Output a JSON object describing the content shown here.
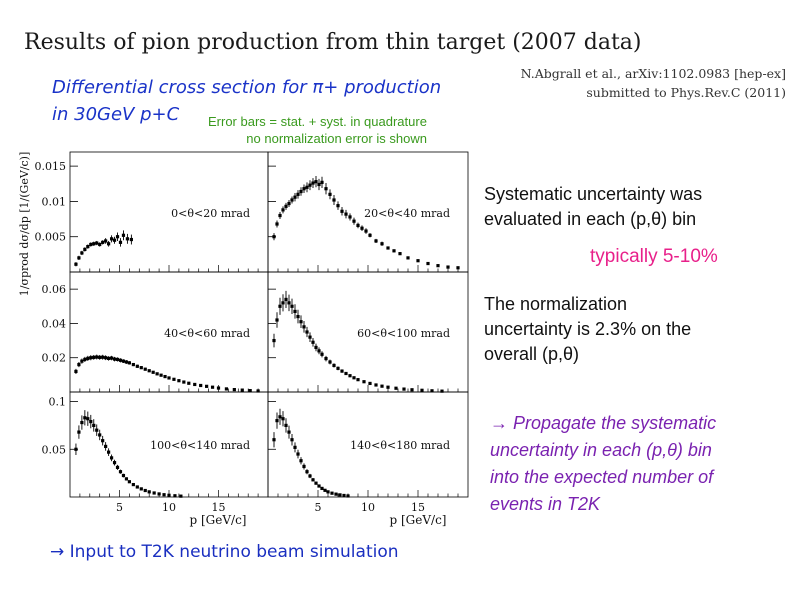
{
  "slide": {
    "title": "Results of pion production from thin target (2007 data)",
    "citation": [
      "N.Abgrall et al., arXiv:1102.0983 [hep-ex]",
      "submitted to Phys.Rev.C (2011)"
    ],
    "subtitle": [
      "Differential cross section for π+ production",
      "in 30GeV p+C"
    ],
    "error_note": [
      "Error bars = stat. + syst. in quadrature",
      "no normalization error is shown"
    ],
    "systematic_note": [
      "Systematic uncertainty was",
      "evaluated in each (p,θ) bin"
    ],
    "typical_note": "typically 5-10%",
    "normalization_note": [
      "The normalization",
      "uncertainty is 2.3% on the",
      "overall (p,θ)"
    ],
    "propagate_note": [
      "→ Propagate the systematic",
      "uncertainty in each (p,θ) bin",
      "into the expected number of",
      "events in T2K"
    ],
    "input_note": "→ Input to T2K neutrino beam simulation",
    "colors": {
      "title": "#1a1a1a",
      "subtitle": "#1a33c8",
      "error_note": "#3a9a1e",
      "typical": "#e8208a",
      "propagate": "#7a22b0",
      "input": "#1a2fc0"
    }
  },
  "chart_data": {
    "type": "scatter",
    "ylabel": "1/σprod dσ/dp [1/(GeV/c)]",
    "xlabel": "p [GeV/c]",
    "x_ticks": [
      "5",
      "10",
      "15"
    ],
    "xlim": [
      0,
      20
    ],
    "rows": [
      {
        "ylim": [
          0,
          0.017
        ],
        "y_ticks": [
          "0.005",
          "0.01",
          "0.015"
        ],
        "y_tick_values": [
          0.005,
          0.01,
          0.015
        ]
      },
      {
        "ylim": [
          0,
          0.07
        ],
        "y_ticks": [
          "0.02",
          "0.04",
          "0.06"
        ],
        "y_tick_values": [
          0.02,
          0.04,
          0.06
        ]
      },
      {
        "ylim": [
          0,
          0.11
        ],
        "y_ticks": [
          "0.05",
          "0.1"
        ],
        "y_tick_values": [
          0.05,
          0.1
        ]
      }
    ],
    "panels": [
      {
        "label": "0<θ<20 mrad",
        "row": 0,
        "col": 0,
        "x": [
          0.6,
          0.9,
          1.2,
          1.5,
          1.8,
          2.1,
          2.4,
          2.7,
          3.0,
          3.3,
          3.6,
          3.9,
          4.2,
          4.5,
          4.8,
          5.1,
          5.4,
          5.8,
          6.2
        ],
        "y": [
          0.0011,
          0.002,
          0.0027,
          0.0032,
          0.0036,
          0.0039,
          0.004,
          0.0041,
          0.0039,
          0.0042,
          0.0044,
          0.004,
          0.0047,
          0.0045,
          0.005,
          0.0042,
          0.0052,
          0.0047,
          0.0046
        ],
        "err": [
          0.0003,
          0.0003,
          0.0003,
          0.0003,
          0.0003,
          0.0003,
          0.0003,
          0.0003,
          0.0003,
          0.0003,
          0.0004,
          0.0004,
          0.0005,
          0.0005,
          0.0006,
          0.0006,
          0.0007,
          0.0007,
          0.0007
        ]
      },
      {
        "label": "20<θ<40 mrad",
        "row": 0,
        "col": 1,
        "x": [
          0.6,
          0.9,
          1.2,
          1.5,
          1.8,
          2.1,
          2.4,
          2.7,
          3.0,
          3.3,
          3.6,
          3.9,
          4.2,
          4.5,
          4.8,
          5.1,
          5.4,
          5.8,
          6.2,
          6.6,
          7.0,
          7.4,
          7.8,
          8.2,
          8.6,
          9.0,
          9.4,
          9.8,
          10.2,
          10.8,
          11.4,
          12.0,
          12.6,
          13.2,
          14.0,
          15.0,
          16.0,
          17.0,
          18.0,
          19.0
        ],
        "y": [
          0.005,
          0.0068,
          0.008,
          0.0088,
          0.0093,
          0.0097,
          0.0102,
          0.0106,
          0.011,
          0.0114,
          0.0118,
          0.012,
          0.0123,
          0.0126,
          0.0128,
          0.0124,
          0.0127,
          0.0118,
          0.011,
          0.0102,
          0.0094,
          0.0086,
          0.0082,
          0.0078,
          0.0072,
          0.0066,
          0.0062,
          0.0058,
          0.0052,
          0.0044,
          0.004,
          0.0034,
          0.003,
          0.0026,
          0.002,
          0.0016,
          0.0012,
          0.0009,
          0.0007,
          0.0006
        ],
        "err": [
          0.0005,
          0.0005,
          0.0005,
          0.0005,
          0.0005,
          0.0005,
          0.0005,
          0.0006,
          0.0006,
          0.0006,
          0.0006,
          0.0007,
          0.0007,
          0.0007,
          0.0008,
          0.0008,
          0.0008,
          0.0008,
          0.0007,
          0.0007,
          0.0006,
          0.0006,
          0.0006,
          0.0005,
          0.0005,
          0.0004,
          0.0004,
          0.0004,
          0.0003,
          0.0003,
          0.0003,
          0.0002,
          0.0002,
          0.0002,
          0.0002,
          0.0001,
          0.0001,
          0.0001,
          0.0001,
          0.0001
        ]
      },
      {
        "label": "40<θ<60 mrad",
        "row": 1,
        "col": 0,
        "x": [
          0.6,
          0.9,
          1.2,
          1.5,
          1.8,
          2.1,
          2.4,
          2.7,
          3.0,
          3.3,
          3.6,
          3.9,
          4.2,
          4.5,
          4.8,
          5.1,
          5.4,
          5.7,
          6.0,
          6.4,
          6.8,
          7.2,
          7.6,
          8.0,
          8.4,
          8.8,
          9.2,
          9.6,
          10.0,
          10.5,
          11.0,
          11.5,
          12.0,
          12.6,
          13.2,
          13.8,
          14.4,
          15.0,
          15.8,
          16.6,
          17.4,
          18.2,
          19.0
        ],
        "y": [
          0.012,
          0.016,
          0.018,
          0.019,
          0.0196,
          0.02,
          0.0202,
          0.0204,
          0.0202,
          0.0203,
          0.02,
          0.0196,
          0.0198,
          0.0192,
          0.019,
          0.0185,
          0.018,
          0.0175,
          0.017,
          0.016,
          0.015,
          0.0142,
          0.0133,
          0.0124,
          0.0115,
          0.0106,
          0.0098,
          0.009,
          0.0082,
          0.0074,
          0.0066,
          0.0058,
          0.0051,
          0.0044,
          0.0038,
          0.0033,
          0.0028,
          0.0023,
          0.0018,
          0.0014,
          0.0011,
          0.0008,
          0.0006
        ],
        "err": [
          0.0015,
          0.0015,
          0.0015,
          0.0015,
          0.0015,
          0.0015,
          0.0014,
          0.0014,
          0.0014,
          0.0014,
          0.0014,
          0.0013,
          0.0013,
          0.0013,
          0.0012,
          0.0012,
          0.0011,
          0.0011,
          0.001,
          0.0009,
          0.0009,
          0.0008,
          0.0008,
          0.0007,
          0.0007,
          0.0006,
          0.0006,
          0.0006,
          0.0005,
          0.0005,
          0.0004,
          0.0004,
          0.0004,
          0.0003,
          0.0003,
          0.0003,
          0.0002,
          0.0002,
          0.0002,
          0.0002,
          0.0001,
          0.0001,
          0.0001
        ]
      },
      {
        "label": "60<θ<100 mrad",
        "row": 1,
        "col": 1,
        "x": [
          0.6,
          0.9,
          1.2,
          1.5,
          1.8,
          2.1,
          2.4,
          2.7,
          3.0,
          3.3,
          3.6,
          3.9,
          4.2,
          4.5,
          4.8,
          5.1,
          5.4,
          5.8,
          6.2,
          6.6,
          7.0,
          7.4,
          7.8,
          8.2,
          8.6,
          9.0,
          9.6,
          10.2,
          10.8,
          11.4,
          12.0,
          12.8,
          13.6,
          14.4,
          15.4,
          16.4,
          17.4
        ],
        "y": [
          0.03,
          0.042,
          0.05,
          0.052,
          0.054,
          0.052,
          0.05,
          0.047,
          0.044,
          0.041,
          0.038,
          0.035,
          0.032,
          0.029,
          0.026,
          0.024,
          0.022,
          0.0195,
          0.0175,
          0.0155,
          0.0138,
          0.0122,
          0.0108,
          0.0095,
          0.0083,
          0.0072,
          0.006,
          0.005,
          0.0041,
          0.0034,
          0.0028,
          0.0022,
          0.0017,
          0.0013,
          0.001,
          0.0007,
          0.0005
        ],
        "err": [
          0.004,
          0.0045,
          0.005,
          0.005,
          0.005,
          0.0048,
          0.0045,
          0.0042,
          0.004,
          0.0037,
          0.0034,
          0.003,
          0.0028,
          0.0025,
          0.0022,
          0.002,
          0.0018,
          0.0016,
          0.0014,
          0.0012,
          0.0011,
          0.001,
          0.0009,
          0.0008,
          0.0007,
          0.0006,
          0.0005,
          0.0004,
          0.0004,
          0.0003,
          0.0003,
          0.0002,
          0.0002,
          0.0002,
          0.0001,
          0.0001,
          0.0001
        ]
      },
      {
        "label": "100<θ<140 mrad",
        "row": 2,
        "col": 0,
        "x": [
          0.6,
          0.9,
          1.2,
          1.5,
          1.8,
          2.1,
          2.4,
          2.7,
          3.0,
          3.3,
          3.6,
          3.9,
          4.2,
          4.5,
          4.8,
          5.1,
          5.4,
          5.7,
          6.0,
          6.4,
          6.8,
          7.2,
          7.6,
          8.0,
          8.5,
          9.0,
          9.5,
          10.0,
          10.6,
          11.2
        ],
        "y": [
          0.05,
          0.068,
          0.078,
          0.083,
          0.082,
          0.079,
          0.075,
          0.07,
          0.065,
          0.059,
          0.053,
          0.047,
          0.041,
          0.036,
          0.031,
          0.0265,
          0.0225,
          0.019,
          0.016,
          0.013,
          0.0105,
          0.0085,
          0.0068,
          0.0054,
          0.0042,
          0.0032,
          0.0024,
          0.0018,
          0.0013,
          0.0009
        ],
        "err": [
          0.006,
          0.007,
          0.0075,
          0.008,
          0.0075,
          0.007,
          0.0065,
          0.006,
          0.0055,
          0.005,
          0.0045,
          0.004,
          0.0035,
          0.003,
          0.0026,
          0.0022,
          0.0019,
          0.0016,
          0.0013,
          0.0011,
          0.0009,
          0.0007,
          0.0006,
          0.0005,
          0.0004,
          0.0003,
          0.0002,
          0.0002,
          0.0001,
          0.0001
        ]
      },
      {
        "label": "140<θ<180 mrad",
        "row": 2,
        "col": 1,
        "x": [
          0.6,
          0.9,
          1.2,
          1.5,
          1.8,
          2.1,
          2.4,
          2.7,
          3.0,
          3.3,
          3.6,
          3.9,
          4.2,
          4.5,
          4.8,
          5.1,
          5.4,
          5.7,
          6.0,
          6.4,
          6.8,
          7.2,
          7.6,
          8.0
        ],
        "y": [
          0.06,
          0.08,
          0.084,
          0.082,
          0.075,
          0.068,
          0.06,
          0.052,
          0.045,
          0.038,
          0.032,
          0.0265,
          0.022,
          0.018,
          0.0145,
          0.0115,
          0.009,
          0.007,
          0.0054,
          0.004,
          0.003,
          0.0022,
          0.0016,
          0.0011
        ],
        "err": [
          0.008,
          0.0085,
          0.0085,
          0.008,
          0.0075,
          0.0068,
          0.006,
          0.0052,
          0.0045,
          0.0038,
          0.0032,
          0.0027,
          0.0022,
          0.0018,
          0.0015,
          0.0012,
          0.0009,
          0.0007,
          0.0006,
          0.0004,
          0.0003,
          0.0003,
          0.0002,
          0.0002
        ]
      }
    ]
  }
}
